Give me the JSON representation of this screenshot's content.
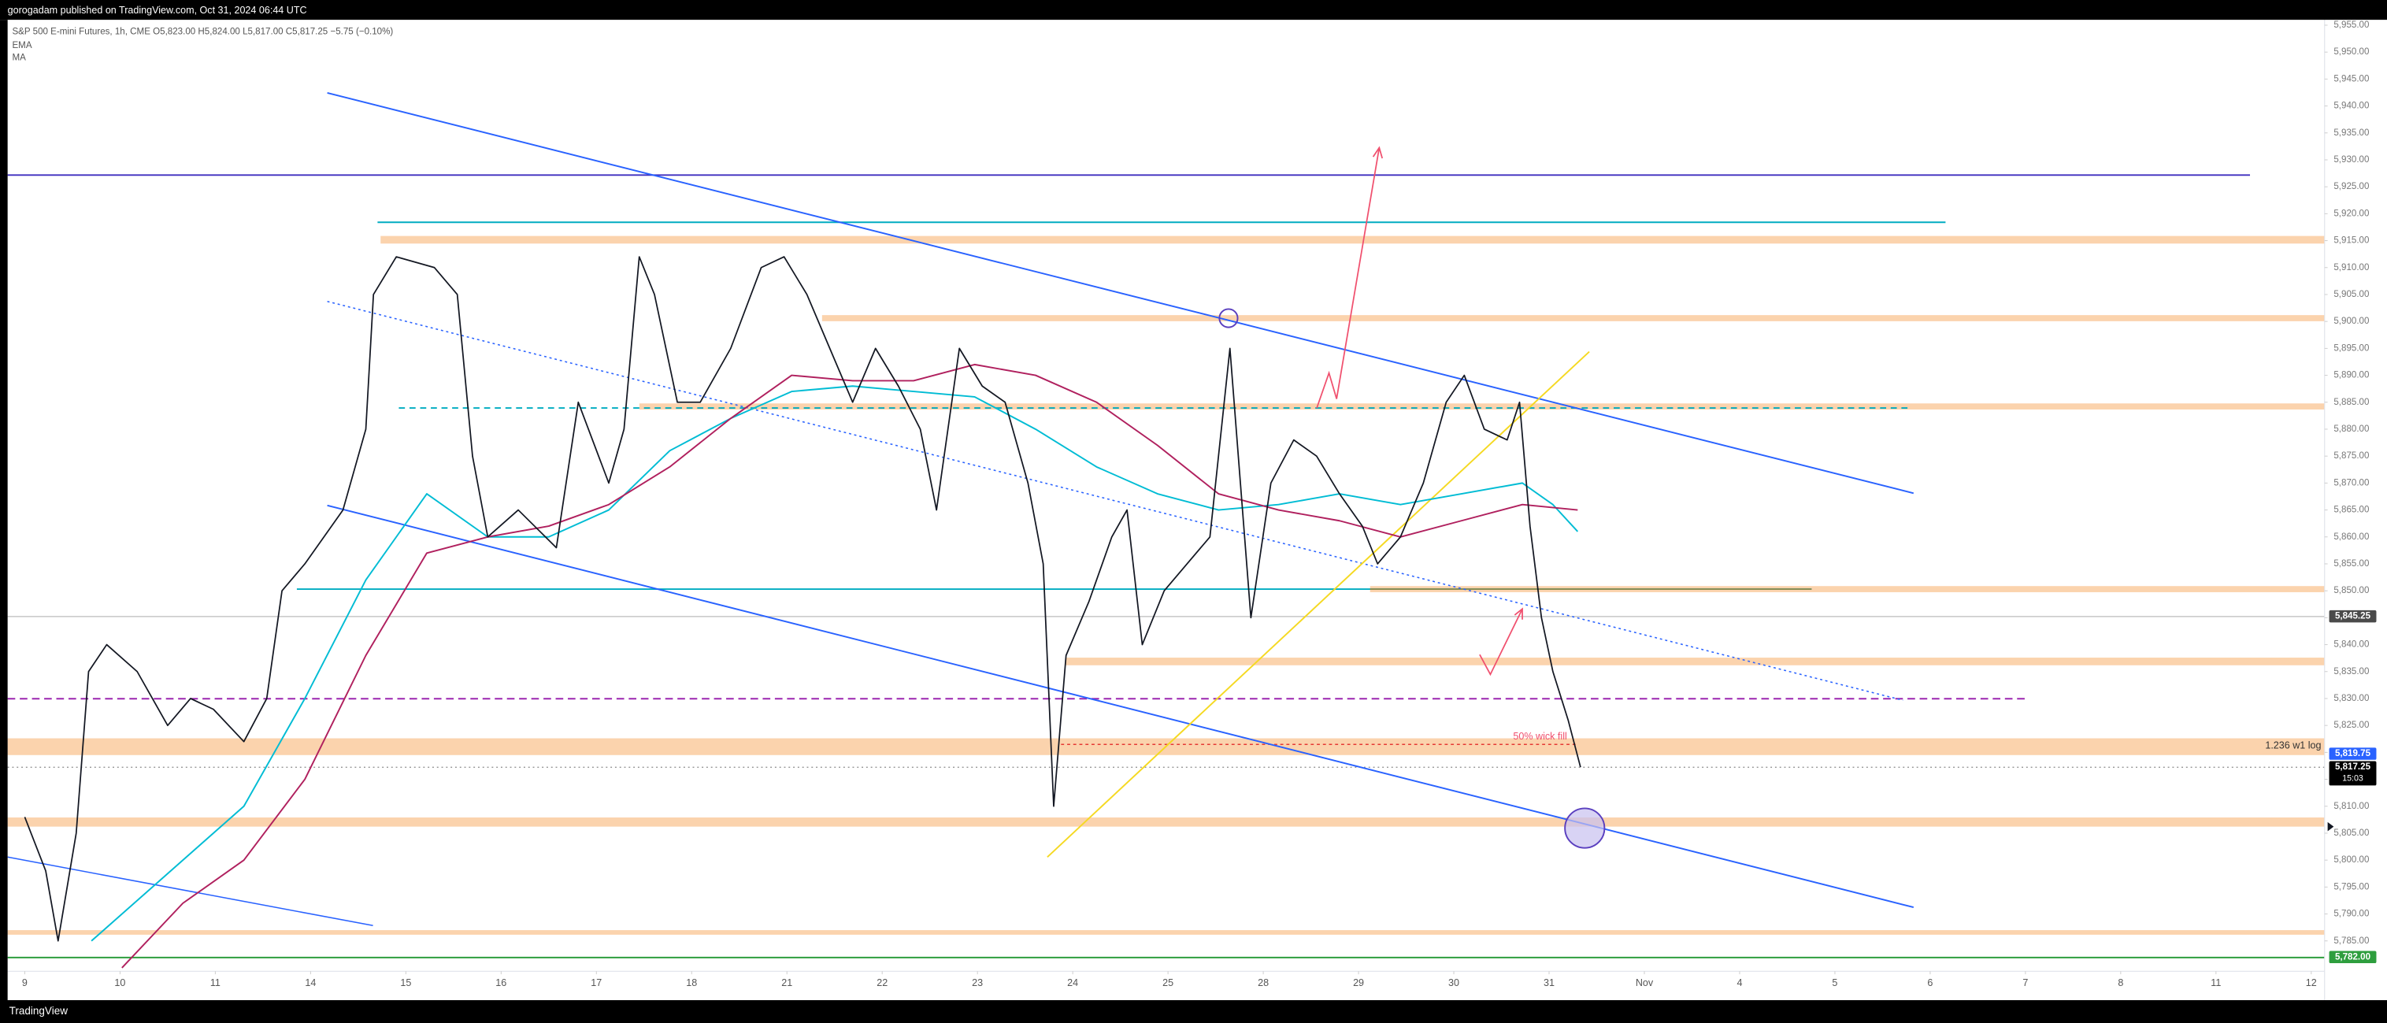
{
  "header": {
    "publisher": "gorogadam published on TradingView.com, Oct 31, 2024 06:44 UTC",
    "brand": "TradingView"
  },
  "chart_data": {
    "type": "line",
    "title": "S&P 500 E-mini Futures, 1h, CME",
    "ohlc": "O5,823.00 H5,824.00 L5,817.00 C5,817.25 −5.75 (−0.10%)",
    "xlim": [
      -0.18,
      24.14
    ],
    "ylim": [
      5774,
      5956
    ],
    "xticks": [
      {
        "value": 0,
        "label": "9"
      },
      {
        "value": 1,
        "label": "10"
      },
      {
        "value": 2,
        "label": "11"
      },
      {
        "value": 3,
        "label": "14"
      },
      {
        "value": 4,
        "label": "15"
      },
      {
        "value": 5,
        "label": "16"
      },
      {
        "value": 6,
        "label": "17"
      },
      {
        "value": 7,
        "label": "18"
      },
      {
        "value": 8,
        "label": "21"
      },
      {
        "value": 9,
        "label": "22"
      },
      {
        "value": 10,
        "label": "23"
      },
      {
        "value": 11,
        "label": "24"
      },
      {
        "value": 12,
        "label": "25"
      },
      {
        "value": 13,
        "label": "28"
      },
      {
        "value": 14,
        "label": "29"
      },
      {
        "value": 15,
        "label": "30"
      },
      {
        "value": 16,
        "label": "31"
      },
      {
        "value": 17,
        "label": "Nov"
      },
      {
        "value": 18,
        "label": "4"
      },
      {
        "value": 19,
        "label": "5"
      },
      {
        "value": 20,
        "label": "6"
      },
      {
        "value": 21,
        "label": "7"
      },
      {
        "value": 22,
        "label": "8"
      },
      {
        "value": 23,
        "label": "11"
      },
      {
        "value": 24,
        "label": "12"
      }
    ],
    "yticks": [
      {
        "value": 5785,
        "label": "5,785.00"
      },
      {
        "value": 5790,
        "label": "5,790.00"
      },
      {
        "value": 5795,
        "label": "5,795.00"
      },
      {
        "value": 5800,
        "label": "5,800.00"
      },
      {
        "value": 5805,
        "label": "5,805.00"
      },
      {
        "value": 5810,
        "label": "5,810.00"
      },
      {
        "value": 5815,
        "label": "5,815.00"
      },
      {
        "value": 5820,
        "label": "5,820.00"
      },
      {
        "value": 5825,
        "label": "5,825.00"
      },
      {
        "value": 5830,
        "label": "5,830.00"
      },
      {
        "value": 5835,
        "label": "5,835.00"
      },
      {
        "value": 5840,
        "label": "5,840.00"
      },
      {
        "value": 5845,
        "label": "5,845.00"
      },
      {
        "value": 5850,
        "label": "5,850.00"
      },
      {
        "value": 5855,
        "label": "5,855.00"
      },
      {
        "value": 5860,
        "label": "5,860.00"
      },
      {
        "value": 5865,
        "label": "5,865.00"
      },
      {
        "value": 5870,
        "label": "5,870.00"
      },
      {
        "value": 5875,
        "label": "5,875.00"
      },
      {
        "value": 5880,
        "label": "5,880.00"
      },
      {
        "value": 5885,
        "label": "5,885.00"
      },
      {
        "value": 5890,
        "label": "5,890.00"
      },
      {
        "value": 5895,
        "label": "5,895.00"
      },
      {
        "value": 5900,
        "label": "5,900.00"
      },
      {
        "value": 5905,
        "label": "5,905.00"
      },
      {
        "value": 5910,
        "label": "5,910.00"
      },
      {
        "value": 5915,
        "label": "5,915.00"
      },
      {
        "value": 5920,
        "label": "5,920.00"
      },
      {
        "value": 5925,
        "label": "5,925.00"
      },
      {
        "value": 5930,
        "label": "5,930.00"
      },
      {
        "value": 5935,
        "label": "5,935.00"
      },
      {
        "value": 5940,
        "label": "5,940.00"
      },
      {
        "value": 5945,
        "label": "5,945.00"
      },
      {
        "value": 5950,
        "label": "5,950.00"
      },
      {
        "value": 5955,
        "label": "5,955.00"
      }
    ],
    "price": {
      "color": "#131722",
      "x": [
        0,
        0.22,
        0.35,
        0.54,
        0.67,
        0.86,
        1.18,
        1.5,
        1.74,
        1.98,
        2.3,
        2.54,
        2.7,
        2.94,
        3.34,
        3.58,
        3.66,
        3.9,
        4.3,
        4.54,
        4.7,
        4.86,
        5.18,
        5.58,
        5.81,
        6.13,
        6.29,
        6.45,
        6.61,
        6.85,
        7.09,
        7.41,
        7.73,
        7.97,
        8.21,
        8.45,
        8.69,
        8.93,
        9.17,
        9.4,
        9.57,
        9.81,
        10.05,
        10.29,
        10.53,
        10.69,
        10.8,
        10.93,
        11.17,
        11.41,
        11.57,
        11.73,
        11.96,
        12.2,
        12.44,
        12.65,
        12.76,
        12.87,
        13.08,
        13.32,
        13.56,
        13.8,
        14.04,
        14.2,
        14.44,
        14.68,
        14.92,
        15.11,
        15.32,
        15.56,
        15.69,
        15.8,
        15.92,
        16.04,
        16.2,
        16.33
      ],
      "values": [
        5808,
        5798,
        5785,
        5805,
        5835,
        5840,
        5835,
        5825,
        5830,
        5828,
        5822,
        5830,
        5850,
        5855,
        5865,
        5880,
        5905,
        5912,
        5910,
        5905,
        5875,
        5860,
        5865,
        5858,
        5885,
        5870,
        5880,
        5912,
        5905,
        5885,
        5885,
        5895,
        5910,
        5912,
        5905,
        5895,
        5885,
        5895,
        5888,
        5880,
        5865,
        5895,
        5888,
        5885,
        5870,
        5855,
        5810,
        5838,
        5848,
        5860,
        5865,
        5840,
        5850,
        5855,
        5860,
        5895,
        5870,
        5845,
        5870,
        5878,
        5875,
        5868,
        5862,
        5855,
        5860,
        5870,
        5885,
        5890,
        5880,
        5878,
        5885,
        5862,
        5845,
        5835,
        5826,
        5817.25
      ]
    },
    "series": [
      {
        "name": "EMA",
        "color": "#00bcd4",
        "x": [
          0.7,
          1.34,
          2.3,
          2.94,
          3.58,
          4.22,
          4.86,
          5.5,
          6.13,
          6.77,
          7.41,
          8.05,
          8.69,
          9.33,
          9.97,
          10.61,
          11.25,
          11.89,
          12.53,
          13.16,
          13.8,
          14.44,
          15.08,
          15.72,
          16.04,
          16.3
        ],
        "values": [
          5785,
          5795,
          5810,
          5830,
          5852,
          5868,
          5860,
          5860,
          5865,
          5876,
          5882,
          5887,
          5888,
          5887,
          5886,
          5880,
          5873,
          5868,
          5865,
          5866,
          5868,
          5866,
          5868,
          5870,
          5866,
          5861
        ]
      },
      {
        "name": "MA",
        "color": "#b0205e",
        "x": [
          1.02,
          1.66,
          2.3,
          2.94,
          3.58,
          4.22,
          4.86,
          5.5,
          6.13,
          6.77,
          7.41,
          8.05,
          8.69,
          9.33,
          9.97,
          10.61,
          11.25,
          11.89,
          12.53,
          13.16,
          13.8,
          14.44,
          15.08,
          15.72,
          16.3
        ],
        "values": [
          5780,
          5792,
          5800,
          5815,
          5838,
          5857,
          5860,
          5862,
          5866,
          5873,
          5882,
          5890,
          5889,
          5889,
          5892,
          5890,
          5885,
          5877,
          5868,
          5865,
          5863,
          5860,
          5863,
          5866,
          5865
        ]
      }
    ],
    "price_tags": [
      {
        "value": 5845.25,
        "label": "5,845.25",
        "color": "#4a4a4a"
      },
      {
        "value": 5819.75,
        "label": "5,819.75",
        "color": "#2962ff"
      },
      {
        "value": 5817.25,
        "label": "5,817.25",
        "color": "#000000"
      },
      {
        "value": 5782,
        "label": "5,782.00",
        "color": "#2e9e3e"
      }
    ],
    "countdown": "15:03",
    "annotations": [
      "50% wick fill",
      "1.236 w1 log"
    ]
  }
}
